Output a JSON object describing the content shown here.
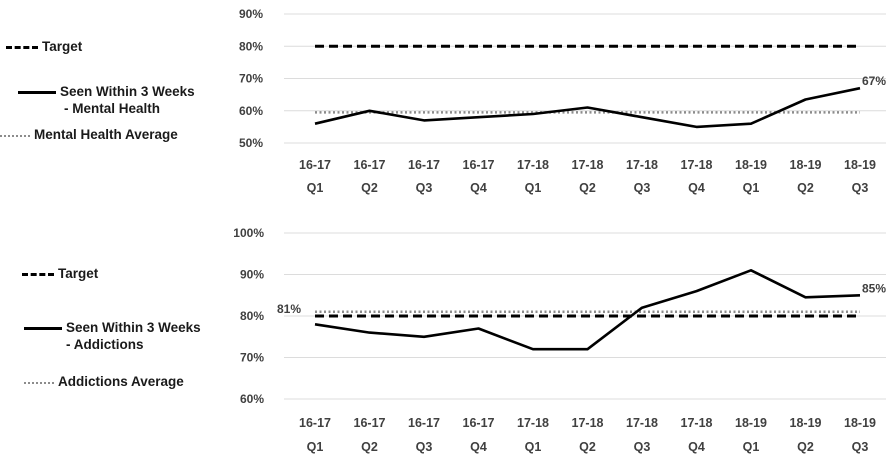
{
  "chart_data": [
    {
      "type": "line",
      "title": "",
      "categories": [
        "16-17 Q1",
        "16-17 Q2",
        "16-17 Q3",
        "16-17 Q4",
        "17-18 Q1",
        "17-18 Q2",
        "17-18 Q3",
        "17-18 Q4",
        "18-19 Q1",
        "18-19 Q2",
        "18-19 Q3"
      ],
      "category_lines": [
        [
          "16-17",
          "Q1"
        ],
        [
          "16-17",
          "Q2"
        ],
        [
          "16-17",
          "Q3"
        ],
        [
          "16-17",
          "Q4"
        ],
        [
          "17-18",
          "Q1"
        ],
        [
          "17-18",
          "Q2"
        ],
        [
          "17-18",
          "Q3"
        ],
        [
          "17-18",
          "Q4"
        ],
        [
          "18-19",
          "Q1"
        ],
        [
          "18-19",
          "Q2"
        ],
        [
          "18-19",
          "Q3"
        ]
      ],
      "ylim": [
        50,
        90
      ],
      "yticks": [
        50,
        60,
        70,
        80,
        90
      ],
      "ytick_labels": [
        "50%",
        "60%",
        "70%",
        "80%",
        "90%"
      ],
      "grid": true,
      "legend_position": "left",
      "series": [
        {
          "name": "Target",
          "style": "dashed",
          "color": "#000000",
          "values": [
            80,
            80,
            80,
            80,
            80,
            80,
            80,
            80,
            80,
            80,
            80
          ]
        },
        {
          "name": "Seen Within 3 Weeks - Mental Health",
          "name_lines": [
            "Seen Within 3 Weeks",
            "- Mental Health"
          ],
          "style": "solid",
          "color": "#000000",
          "values": [
            56,
            60,
            57,
            58,
            59,
            61,
            58,
            55,
            56,
            63.5,
            67
          ]
        },
        {
          "name": "Mental Health Average",
          "style": "dotted",
          "color": "#8c8c8c",
          "values": [
            59.5,
            59.5,
            59.5,
            59.5,
            59.5,
            59.5,
            59.5,
            59.5,
            59.5,
            59.5,
            59.5
          ]
        }
      ],
      "annotations": [
        {
          "series": 1,
          "index": 10,
          "text": "67%"
        }
      ]
    },
    {
      "type": "line",
      "title": "",
      "categories": [
        "16-17 Q1",
        "16-17 Q2",
        "16-17 Q3",
        "16-17 Q4",
        "17-18 Q1",
        "17-18 Q2",
        "17-18 Q3",
        "17-18 Q4",
        "18-19 Q1",
        "18-19 Q2",
        "18-19 Q3"
      ],
      "category_lines": [
        [
          "16-17",
          "Q1"
        ],
        [
          "16-17",
          "Q2"
        ],
        [
          "16-17",
          "Q3"
        ],
        [
          "16-17",
          "Q4"
        ],
        [
          "17-18",
          "Q1"
        ],
        [
          "17-18",
          "Q2"
        ],
        [
          "17-18",
          "Q3"
        ],
        [
          "17-18",
          "Q4"
        ],
        [
          "18-19",
          "Q1"
        ],
        [
          "18-19",
          "Q2"
        ],
        [
          "18-19",
          "Q3"
        ]
      ],
      "ylim": [
        60,
        100
      ],
      "yticks": [
        60,
        70,
        80,
        90,
        100
      ],
      "ytick_labels": [
        "60%",
        "70%",
        "80%",
        "90%",
        "100%"
      ],
      "grid": true,
      "legend_position": "left",
      "series": [
        {
          "name": "Target",
          "style": "dashed",
          "color": "#000000",
          "values": [
            80,
            80,
            80,
            80,
            80,
            80,
            80,
            80,
            80,
            80,
            80
          ]
        },
        {
          "name": "Seen Within 3 Weeks - Addictions",
          "name_lines": [
            "Seen Within 3 Weeks",
            "- Addictions"
          ],
          "style": "solid",
          "color": "#000000",
          "values": [
            78,
            76,
            75,
            77,
            72,
            72,
            82,
            86,
            91,
            84.5,
            85
          ]
        },
        {
          "name": "Addictions Average",
          "style": "dotted",
          "color": "#8c8c8c",
          "values": [
            81,
            81,
            81,
            81,
            81,
            81,
            81,
            81,
            81,
            81,
            81
          ]
        }
      ],
      "annotations": [
        {
          "series": 1,
          "index": 10,
          "text": "85%"
        },
        {
          "series": 2,
          "index": 0,
          "text": "81%"
        }
      ]
    }
  ]
}
